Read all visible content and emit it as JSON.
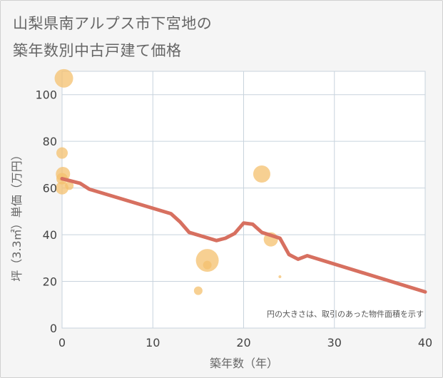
{
  "title": [
    "山梨県南アルプス市下宮地の",
    "築年数別中古戸建て価格"
  ],
  "note": "円の大きさは、取引のあった物件面積を示す",
  "colors": {
    "background": "#f5f5f5",
    "plot": "#ffffff",
    "grid": "#c8d3dd",
    "line": "#d77060",
    "bubble": "#f4c06d"
  },
  "chart_data": {
    "type": "scatter",
    "xlabel": "築年数（年）",
    "ylabel": "坪（3.3㎡）単価（万円）",
    "xlim": [
      0,
      40
    ],
    "ylim": [
      0,
      110
    ],
    "xticks": [
      0,
      10,
      20,
      30,
      40
    ],
    "yticks": [
      0,
      20,
      40,
      60,
      80,
      100
    ],
    "grid": true,
    "bubbles": [
      {
        "x": 0.2,
        "y": 107,
        "size": 13
      },
      {
        "x": 0,
        "y": 75,
        "size": 8
      },
      {
        "x": 0.1,
        "y": 66,
        "size": 10
      },
      {
        "x": 0,
        "y": 64,
        "size": 8
      },
      {
        "x": 0,
        "y": 60,
        "size": 9
      },
      {
        "x": 0.8,
        "y": 61,
        "size": 6
      },
      {
        "x": 15,
        "y": 16,
        "size": 6
      },
      {
        "x": 16,
        "y": 29,
        "size": 16
      },
      {
        "x": 16,
        "y": 27,
        "size": 6
      },
      {
        "x": 22,
        "y": 66,
        "size": 12
      },
      {
        "x": 23,
        "y": 38,
        "size": 10
      },
      {
        "x": 24,
        "y": 22,
        "size": 2
      }
    ],
    "trend": {
      "x": [
        0,
        2,
        3,
        12,
        13,
        14,
        17,
        18,
        19,
        20,
        21,
        22,
        24,
        25,
        26,
        27,
        40
      ],
      "y": [
        64,
        62,
        59.5,
        49,
        45.5,
        41,
        37.5,
        38.5,
        40.5,
        45,
        44.5,
        41,
        38.5,
        31.5,
        29.5,
        31,
        15.5
      ]
    }
  }
}
